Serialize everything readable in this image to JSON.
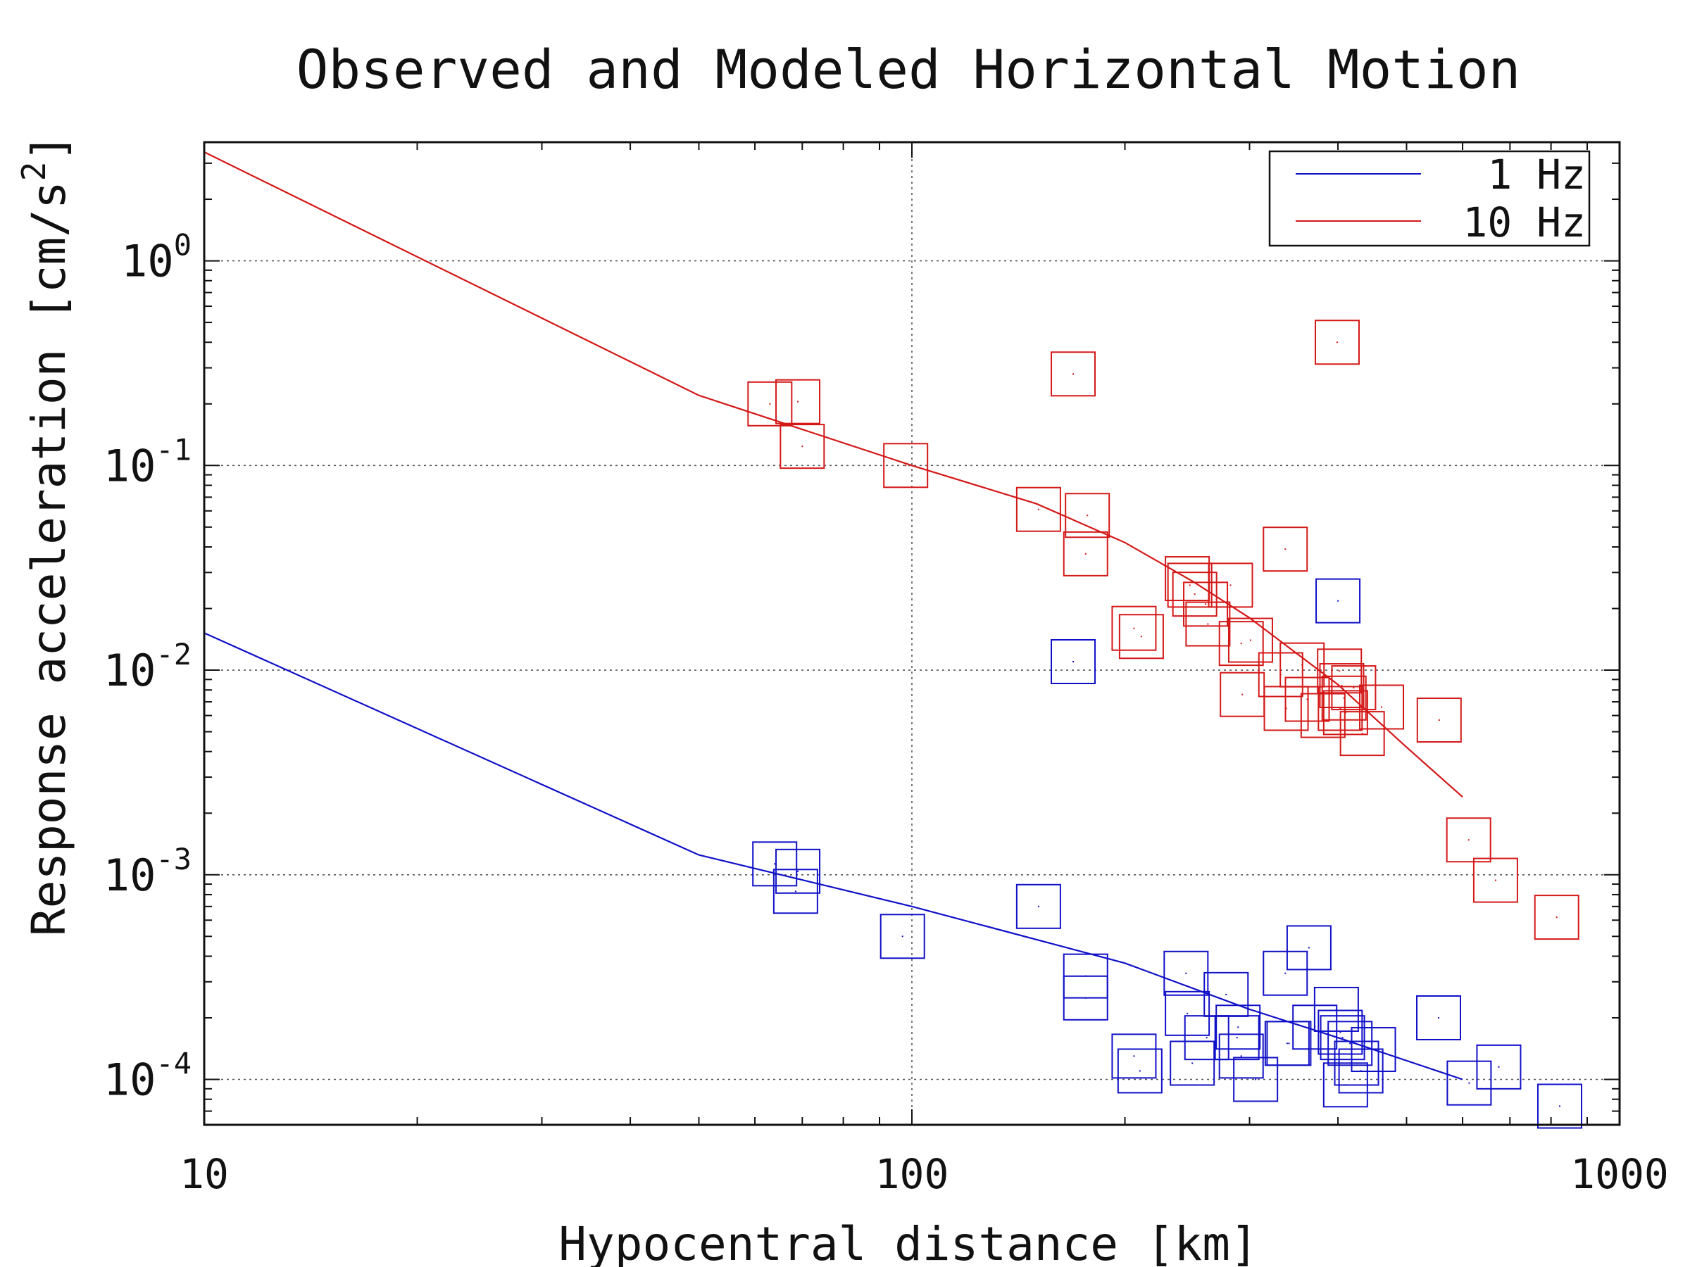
{
  "chart_data": {
    "type": "scatter",
    "title": "Observed and Modeled Horizontal Motion",
    "xlabel": "Hypocentral distance [km]",
    "ylabel": "Response acceleration [cm/s",
    "ylabel_superscript": "2",
    "ylabel_suffix": "]",
    "x_scale": "log",
    "y_scale": "log",
    "xlim": [
      10,
      1000
    ],
    "ylim": [
      6e-05,
      3.8
    ],
    "x_ticks": [
      {
        "value": 10,
        "label": "10"
      },
      {
        "value": 100,
        "label": "100"
      },
      {
        "value": 1000,
        "label": "1000"
      }
    ],
    "y_ticks": [
      {
        "value": 1,
        "base": "10",
        "exp": "0"
      },
      {
        "value": 0.1,
        "base": "10",
        "exp": "-1"
      },
      {
        "value": 0.01,
        "base": "10",
        "exp": "-2"
      },
      {
        "value": 0.001,
        "base": "10",
        "exp": "-3"
      },
      {
        "value": 0.0001,
        "base": "10",
        "exp": "-4"
      }
    ],
    "grid": "dotted",
    "legend_position": "top-right",
    "series": [
      {
        "name": "1 Hz",
        "color": "#1010c8",
        "model_line": [
          [
            10,
            0.0152
          ],
          [
            50,
            0.00125
          ],
          [
            100,
            0.0007
          ],
          [
            200,
            0.00037
          ],
          [
            300,
            0.00022
          ],
          [
            400,
            0.00016
          ],
          [
            600,
            0.0001
          ]
        ],
        "observed": [
          [
            64,
            0.00113
          ],
          [
            69,
            0.00104
          ],
          [
            68.5,
            0.00083
          ],
          [
            97,
            0.0005
          ],
          [
            169,
            0.011
          ],
          [
            151,
            0.0007
          ],
          [
            176,
            0.00032
          ],
          [
            176,
            0.00025
          ],
          [
            206,
            0.00013
          ],
          [
            210,
            0.00011
          ],
          [
            244,
            0.00033
          ],
          [
            245,
            0.00021
          ],
          [
            249,
            0.00012
          ],
          [
            261,
            0.00016
          ],
          [
            278,
            0.00026
          ],
          [
            288,
            0.00016
          ],
          [
            289,
            0.00018
          ],
          [
            292,
            0.00013
          ],
          [
            306,
            0.0001
          ],
          [
            337,
            0.00033
          ],
          [
            339,
            0.00015
          ],
          [
            341,
            0.00015
          ],
          [
            364,
            0.00044
          ],
          [
            371,
            0.00018
          ],
          [
            398,
            0.00022
          ],
          [
            403,
            0.00017
          ],
          [
            406,
            0.00016
          ],
          [
            410,
            9.4e-05
          ],
          [
            416,
            0.00015
          ],
          [
            425,
            0.00012
          ],
          [
            449,
            0.00014
          ],
          [
            431,
            0.00011
          ],
          [
            400,
            0.0218
          ],
          [
            555,
            0.0002
          ],
          [
            613,
            9.6e-05
          ],
          [
            675,
            0.000115
          ],
          [
            823,
            7.4e-05
          ]
        ]
      },
      {
        "name": "10 Hz",
        "color": "#d41818",
        "model_line": [
          [
            10,
            3.4
          ],
          [
            50,
            0.22
          ],
          [
            100,
            0.1
          ],
          [
            150,
            0.065
          ],
          [
            200,
            0.042
          ],
          [
            250,
            0.027
          ],
          [
            300,
            0.018
          ],
          [
            400,
            0.0085
          ],
          [
            500,
            0.0042
          ],
          [
            600,
            0.0024
          ]
        ],
        "observed": [
          [
            63,
            0.2
          ],
          [
            69,
            0.205
          ],
          [
            70,
            0.124
          ],
          [
            98,
            0.1
          ],
          [
            169,
            0.28
          ],
          [
            151,
            0.061
          ],
          [
            177,
            0.057
          ],
          [
            176,
            0.037
          ],
          [
            206,
            0.016
          ],
          [
            211,
            0.0146
          ],
          [
            245,
            0.028
          ],
          [
            247,
            0.026
          ],
          [
            251,
            0.0235
          ],
          [
            260,
            0.021
          ],
          [
            262,
            0.0168
          ],
          [
            282,
            0.026
          ],
          [
            292,
            0.0135
          ],
          [
            301,
            0.014
          ],
          [
            293,
            0.0076
          ],
          [
            337,
            0.039
          ],
          [
            332,
            0.0095
          ],
          [
            338,
            0.0065
          ],
          [
            356,
            0.0106
          ],
          [
            362,
            0.0072
          ],
          [
            381,
            0.006
          ],
          [
            402,
            0.0099
          ],
          [
            405,
            0.0084
          ],
          [
            408,
            0.0073
          ],
          [
            403,
            0.0065
          ],
          [
            410,
            0.0062
          ],
          [
            421,
            0.0082
          ],
          [
            461,
            0.0066
          ],
          [
            433,
            0.0049
          ],
          [
            399,
            0.4
          ],
          [
            556,
            0.0057
          ],
          [
            612,
            0.00148
          ],
          [
            668,
            0.00094
          ],
          [
            815,
            0.00062
          ]
        ]
      }
    ]
  }
}
